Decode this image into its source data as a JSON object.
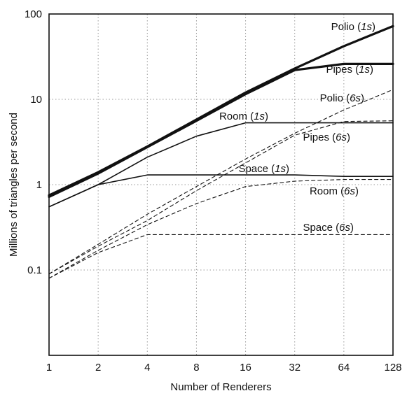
{
  "chart_data": {
    "type": "line",
    "title": "",
    "xlabel": "Number of Renderers",
    "ylabel": "Millions of triangles per second",
    "x_scale": "log2",
    "y_scale": "log10",
    "x": [
      1,
      2,
      4,
      8,
      16,
      32,
      64,
      128
    ],
    "x_tick_labels": [
      "1",
      "2",
      "4",
      "8",
      "16",
      "32",
      "64",
      "128"
    ],
    "xlim": [
      1,
      128
    ],
    "ylim": [
      0.01,
      100
    ],
    "y_ticks": [
      0.1,
      1,
      10,
      100
    ],
    "y_tick_labels": [
      "0.1",
      "1",
      "10",
      "100"
    ],
    "grid": true,
    "legend": "none",
    "series": [
      {
        "name": "Polio",
        "time": "1s",
        "style": "solid-bold",
        "values": [
          0.75,
          1.4,
          2.8,
          5.8,
          12,
          23,
          42,
          72
        ]
      },
      {
        "name": "Pipes",
        "time": "1s",
        "style": "solid-bold",
        "values": [
          0.72,
          1.35,
          2.75,
          5.6,
          11.5,
          22,
          26,
          26
        ]
      },
      {
        "name": "Room",
        "time": "1s",
        "style": "solid",
        "values": [
          0.55,
          1.0,
          2.1,
          3.7,
          5.3,
          5.3,
          5.3,
          5.3
        ]
      },
      {
        "name": "Space",
        "time": "1s",
        "style": "solid",
        "values": [
          0.55,
          1.0,
          1.3,
          1.3,
          1.3,
          1.3,
          1.25,
          1.25
        ]
      },
      {
        "name": "Polio",
        "time": "6s",
        "style": "dashed",
        "values": [
          0.09,
          0.2,
          0.45,
          0.95,
          2.0,
          4.0,
          7.5,
          13
        ]
      },
      {
        "name": "Pipes",
        "time": "6s",
        "style": "dashed",
        "values": [
          0.09,
          0.19,
          0.38,
          0.85,
          1.8,
          3.8,
          5.5,
          5.6
        ]
      },
      {
        "name": "Room",
        "time": "6s",
        "style": "dashed",
        "values": [
          0.08,
          0.17,
          0.34,
          0.6,
          0.95,
          1.1,
          1.15,
          1.15
        ]
      },
      {
        "name": "Space",
        "time": "6s",
        "style": "dashed",
        "values": [
          0.08,
          0.16,
          0.26,
          0.26,
          0.26,
          0.26,
          0.26,
          0.26
        ]
      }
    ],
    "labels": [
      {
        "name": "Polio",
        "time": "1s"
      },
      {
        "name": "Pipes",
        "time": "1s"
      },
      {
        "name": "Polio",
        "time": "6s"
      },
      {
        "name": "Room",
        "time": "1s"
      },
      {
        "name": "Pipes",
        "time": "6s"
      },
      {
        "name": "Space",
        "time": "1s"
      },
      {
        "name": "Room",
        "time": "6s"
      },
      {
        "name": "Space",
        "time": "6s"
      }
    ],
    "colors": {
      "line": "#111111",
      "grid": "#9a9a9a",
      "frame": "#111111"
    }
  }
}
